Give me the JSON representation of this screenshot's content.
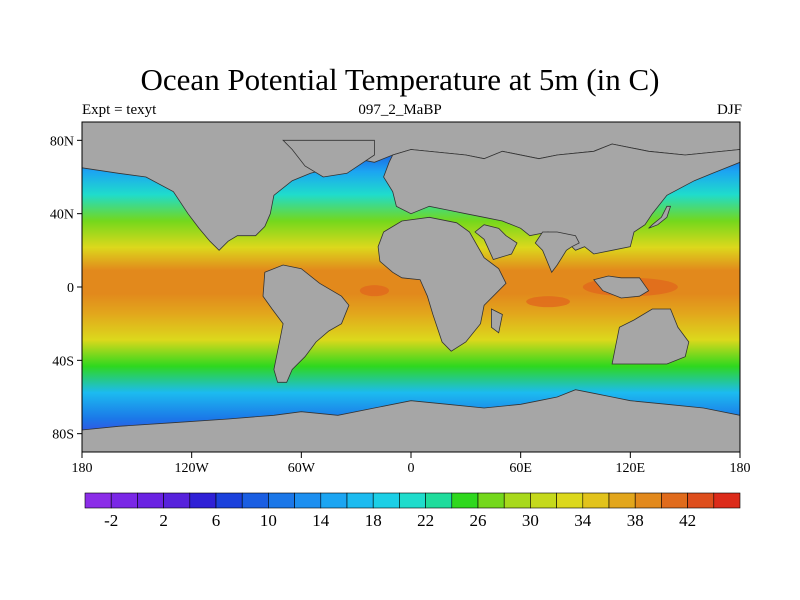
{
  "map": {
    "title": "Ocean Potential Temperature at 5m (in C)",
    "left_label": "Expt = texyt",
    "center_label": "097_2_MaBP",
    "right_label": "DJF",
    "lon_ticks": [
      {
        "lon": -180,
        "label": "180"
      },
      {
        "lon": -120,
        "label": "120W"
      },
      {
        "lon": -60,
        "label": "60W"
      },
      {
        "lon": 0,
        "label": "0"
      },
      {
        "lon": 60,
        "label": "60E"
      },
      {
        "lon": 120,
        "label": "120E"
      },
      {
        "lon": 180,
        "label": "180"
      }
    ],
    "lat_ticks": [
      {
        "lat": 80,
        "label": "80N"
      },
      {
        "lat": 40,
        "label": "40N"
      },
      {
        "lat": 0,
        "label": "0"
      },
      {
        "lat": -40,
        "label": "40S"
      },
      {
        "lat": -80,
        "label": "80S"
      }
    ],
    "lat_range": [
      -90,
      90
    ],
    "lon_range": [
      -180,
      180
    ],
    "land_color": "#a6a6a6",
    "continents": [
      {
        "name": "north-america",
        "outline": [
          [
            -180,
            90
          ],
          [
            180,
            90
          ],
          [
            180,
            75
          ],
          [
            150,
            72
          ],
          [
            130,
            74
          ],
          [
            110,
            78
          ],
          [
            100,
            74
          ],
          [
            80,
            72
          ],
          [
            70,
            70
          ],
          [
            50,
            74
          ],
          [
            40,
            70
          ],
          [
            30,
            72
          ],
          [
            0,
            75
          ],
          [
            -10,
            72
          ],
          [
            -20,
            68
          ],
          [
            -30,
            70
          ],
          [
            -40,
            66
          ],
          [
            -55,
            62
          ],
          [
            -65,
            58
          ],
          [
            -75,
            50
          ],
          [
            -77,
            40
          ],
          [
            -80,
            33
          ],
          [
            -85,
            28
          ],
          [
            -95,
            28
          ],
          [
            -100,
            25
          ],
          [
            -105,
            20
          ],
          [
            -110,
            25
          ],
          [
            -116,
            32
          ],
          [
            -122,
            40
          ],
          [
            -130,
            52
          ],
          [
            -145,
            60
          ],
          [
            -160,
            62
          ],
          [
            -180,
            65
          ]
        ]
      },
      {
        "name": "west-europe",
        "outline": [
          [
            -10,
            72
          ],
          [
            0,
            75
          ],
          [
            30,
            72
          ],
          [
            40,
            70
          ],
          [
            50,
            74
          ],
          [
            70,
            70
          ],
          [
            80,
            72
          ],
          [
            100,
            74
          ],
          [
            110,
            78
          ],
          [
            130,
            74
          ],
          [
            150,
            72
          ],
          [
            180,
            75
          ],
          [
            180,
            68
          ],
          [
            165,
            62
          ],
          [
            155,
            58
          ],
          [
            140,
            50
          ],
          [
            132,
            40
          ],
          [
            128,
            34
          ],
          [
            122,
            30
          ],
          [
            120,
            22
          ],
          [
            110,
            20
          ],
          [
            100,
            18
          ],
          [
            95,
            22
          ],
          [
            90,
            20
          ],
          [
            82,
            28
          ],
          [
            75,
            30
          ],
          [
            65,
            28
          ],
          [
            60,
            32
          ],
          [
            50,
            36
          ],
          [
            40,
            38
          ],
          [
            30,
            40
          ],
          [
            20,
            42
          ],
          [
            10,
            44
          ],
          [
            0,
            40
          ],
          [
            -8,
            44
          ],
          [
            -10,
            52
          ],
          [
            -15,
            60
          ],
          [
            -12,
            68
          ]
        ]
      },
      {
        "name": "africa",
        "outline": [
          [
            -15,
            30
          ],
          [
            -5,
            36
          ],
          [
            10,
            38
          ],
          [
            25,
            35
          ],
          [
            32,
            30
          ],
          [
            40,
            16
          ],
          [
            48,
            10
          ],
          [
            52,
            2
          ],
          [
            40,
            -10
          ],
          [
            38,
            -20
          ],
          [
            30,
            -30
          ],
          [
            22,
            -35
          ],
          [
            17,
            -30
          ],
          [
            12,
            -15
          ],
          [
            9,
            -5
          ],
          [
            5,
            4
          ],
          [
            -5,
            5
          ],
          [
            -10,
            8
          ],
          [
            -17,
            14
          ],
          [
            -18,
            22
          ]
        ]
      },
      {
        "name": "south-america",
        "outline": [
          [
            -80,
            8
          ],
          [
            -70,
            12
          ],
          [
            -60,
            10
          ],
          [
            -50,
            2
          ],
          [
            -38,
            -5
          ],
          [
            -34,
            -10
          ],
          [
            -38,
            -20
          ],
          [
            -45,
            -24
          ],
          [
            -52,
            -30
          ],
          [
            -58,
            -38
          ],
          [
            -65,
            -45
          ],
          [
            -68,
            -52
          ],
          [
            -73,
            -52
          ],
          [
            -75,
            -45
          ],
          [
            -73,
            -35
          ],
          [
            -70,
            -20
          ],
          [
            -76,
            -12
          ],
          [
            -81,
            -5
          ]
        ]
      },
      {
        "name": "india",
        "outline": [
          [
            68,
            24
          ],
          [
            72,
            20
          ],
          [
            77,
            8
          ],
          [
            80,
            12
          ],
          [
            85,
            20
          ],
          [
            88,
            22
          ],
          [
            92,
            24
          ],
          [
            90,
            28
          ],
          [
            80,
            30
          ],
          [
            72,
            30
          ]
        ]
      },
      {
        "name": "arabia",
        "outline": [
          [
            35,
            30
          ],
          [
            40,
            26
          ],
          [
            45,
            15
          ],
          [
            55,
            18
          ],
          [
            58,
            24
          ],
          [
            52,
            28
          ],
          [
            48,
            32
          ],
          [
            40,
            34
          ]
        ]
      },
      {
        "name": "madagascar",
        "outline": [
          [
            44,
            -12
          ],
          [
            50,
            -15
          ],
          [
            48,
            -25
          ],
          [
            44,
            -22
          ]
        ]
      },
      {
        "name": "australia",
        "outline": [
          [
            110,
            -42
          ],
          [
            140,
            -42
          ],
          [
            150,
            -38
          ],
          [
            152,
            -30
          ],
          [
            146,
            -22
          ],
          [
            142,
            -12
          ],
          [
            132,
            -12
          ],
          [
            122,
            -18
          ],
          [
            114,
            -22
          ],
          [
            112,
            -32
          ]
        ]
      },
      {
        "name": "antarctica",
        "outline": [
          [
            -180,
            -90
          ],
          [
            180,
            -90
          ],
          [
            180,
            -70
          ],
          [
            160,
            -66
          ],
          [
            140,
            -64
          ],
          [
            120,
            -62
          ],
          [
            110,
            -60
          ],
          [
            100,
            -58
          ],
          [
            90,
            -56
          ],
          [
            80,
            -60
          ],
          [
            70,
            -62
          ],
          [
            60,
            -64
          ],
          [
            40,
            -66
          ],
          [
            20,
            -64
          ],
          [
            0,
            -62
          ],
          [
            -20,
            -66
          ],
          [
            -40,
            -70
          ],
          [
            -60,
            -68
          ],
          [
            -75,
            -70
          ],
          [
            -100,
            -72
          ],
          [
            -130,
            -74
          ],
          [
            -160,
            -76
          ],
          [
            -180,
            -78
          ]
        ]
      },
      {
        "name": "greenland",
        "outline": [
          [
            -70,
            80
          ],
          [
            -20,
            80
          ],
          [
            -20,
            72
          ],
          [
            -35,
            62
          ],
          [
            -48,
            60
          ],
          [
            -58,
            66
          ],
          [
            -65,
            75
          ]
        ]
      },
      {
        "name": "southeast-asia-islands",
        "outline": [
          [
            100,
            4
          ],
          [
            105,
            -2
          ],
          [
            115,
            -6
          ],
          [
            125,
            -5
          ],
          [
            130,
            -2
          ],
          [
            125,
            5
          ],
          [
            115,
            5
          ],
          [
            108,
            6
          ]
        ]
      },
      {
        "name": "japan",
        "outline": [
          [
            130,
            32
          ],
          [
            135,
            34
          ],
          [
            140,
            38
          ],
          [
            142,
            44
          ],
          [
            140,
            44
          ],
          [
            137,
            38
          ],
          [
            132,
            34
          ]
        ]
      }
    ],
    "colorbar": {
      "colors": [
        "#8b2de8",
        "#7a27e6",
        "#6a22e2",
        "#5722dc",
        "#2f20d6",
        "#1b41dc",
        "#1a5ee2",
        "#1b77e8",
        "#1c8ff0",
        "#1ca5f2",
        "#1cbbf0",
        "#1ccfe6",
        "#1fdccc",
        "#1fdc9c",
        "#2fd81e",
        "#74d81c",
        "#a8d91c",
        "#c5d91c",
        "#dcd81c",
        "#e2c31c",
        "#e2a61c",
        "#e2891c",
        "#e06b1c",
        "#de4e1c",
        "#dc2b1a"
      ],
      "tick_labels": [
        "-2",
        "2",
        "6",
        "10",
        "14",
        "18",
        "22",
        "26",
        "30",
        "34",
        "38",
        "42"
      ],
      "range": [
        -4,
        44
      ],
      "step": 2
    }
  }
}
